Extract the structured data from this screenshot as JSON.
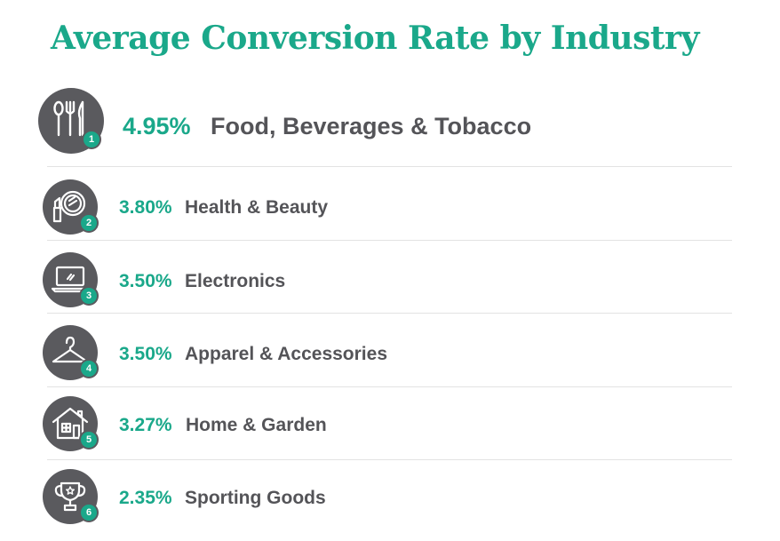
{
  "chart_data": {
    "type": "table",
    "title": "Average Conversion Rate by Industry",
    "items": [
      {
        "rank": "1",
        "value": "4.95%",
        "label": "Food, Beverages & Tobacco",
        "icon": "cutlery-icon"
      },
      {
        "rank": "2",
        "value": "3.80%",
        "label": "Health & Beauty",
        "icon": "lipstick-mirror-icon"
      },
      {
        "rank": "3",
        "value": "3.50%",
        "label": "Electronics",
        "icon": "laptop-icon"
      },
      {
        "rank": "4",
        "value": "3.50%",
        "label": "Apparel & Accessories",
        "icon": "hanger-icon"
      },
      {
        "rank": "5",
        "value": "3.27%",
        "label": "Home & Garden",
        "icon": "house-icon"
      },
      {
        "rank": "6",
        "value": "2.35%",
        "label": "Sporting Goods",
        "icon": "trophy-icon"
      }
    ]
  },
  "colors": {
    "accent": "#1aa88a",
    "icon_bg": "#5a5a5e",
    "text": "#545458",
    "divider": "#e3e3e3"
  }
}
